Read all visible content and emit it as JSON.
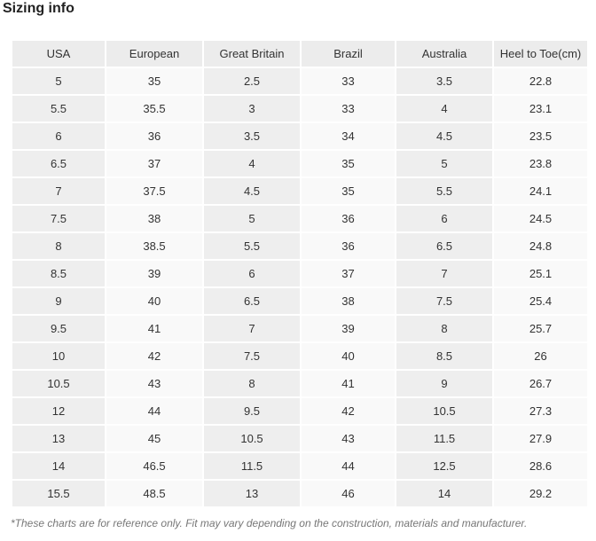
{
  "title": "Sizing info",
  "table": {
    "header": [
      "USA",
      "European",
      "Great Britain",
      "Brazil",
      "Australia",
      "Heel to Toe(cm)"
    ],
    "rows": [
      [
        "5",
        "35",
        "2.5",
        "33",
        "3.5",
        "22.8"
      ],
      [
        "5.5",
        "35.5",
        "3",
        "33",
        "4",
        "23.1"
      ],
      [
        "6",
        "36",
        "3.5",
        "34",
        "4.5",
        "23.5"
      ],
      [
        "6.5",
        "37",
        "4",
        "35",
        "5",
        "23.8"
      ],
      [
        "7",
        "37.5",
        "4.5",
        "35",
        "5.5",
        "24.1"
      ],
      [
        "7.5",
        "38",
        "5",
        "36",
        "6",
        "24.5"
      ],
      [
        "8",
        "38.5",
        "5.5",
        "36",
        "6.5",
        "24.8"
      ],
      [
        "8.5",
        "39",
        "6",
        "37",
        "7",
        "25.1"
      ],
      [
        "9",
        "40",
        "6.5",
        "38",
        "7.5",
        "25.4"
      ],
      [
        "9.5",
        "41",
        "7",
        "39",
        "8",
        "25.7"
      ],
      [
        "10",
        "42",
        "7.5",
        "40",
        "8.5",
        "26"
      ],
      [
        "10.5",
        "43",
        "8",
        "41",
        "9",
        "26.7"
      ],
      [
        "12",
        "44",
        "9.5",
        "42",
        "10.5",
        "27.3"
      ],
      [
        "13",
        "45",
        "10.5",
        "43",
        "11.5",
        "27.9"
      ],
      [
        "14",
        "46.5",
        "11.5",
        "44",
        "12.5",
        "28.6"
      ],
      [
        "15.5",
        "48.5",
        "13",
        "46",
        "14",
        "29.2"
      ]
    ]
  },
  "footnote": "*These charts are for reference only. Fit may vary depending on the construction, materials and manufacturer."
}
